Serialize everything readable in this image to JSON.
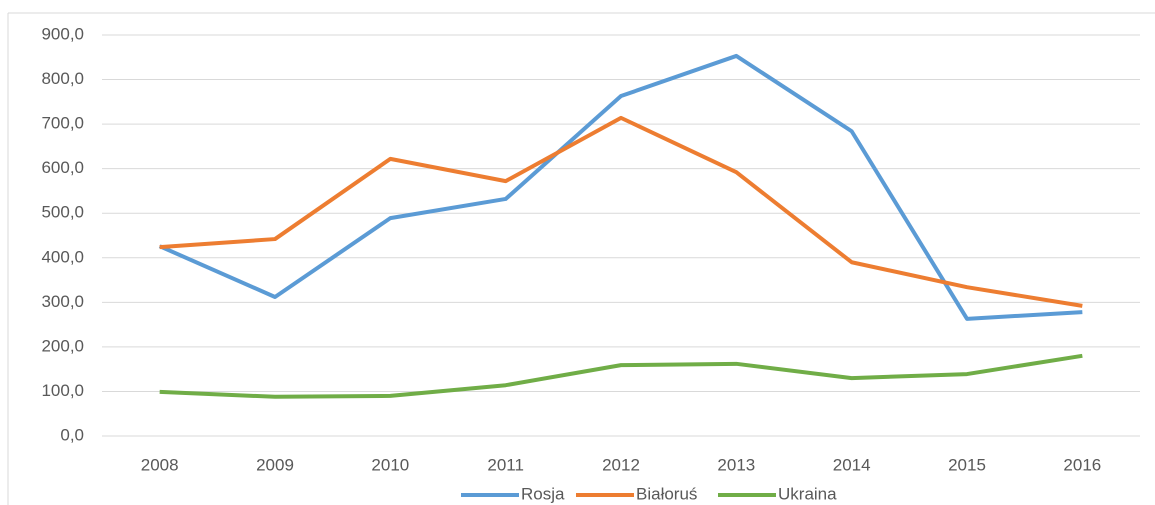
{
  "chart_data": {
    "type": "line",
    "categories": [
      "2008",
      "2009",
      "2010",
      "2011",
      "2012",
      "2013",
      "2014",
      "2015",
      "2016"
    ],
    "series": [
      {
        "name": "Rosja",
        "color": "#5b9bd5",
        "values": [
          426,
          312,
          489,
          532,
          763,
          853,
          684,
          263,
          278
        ]
      },
      {
        "name": "Białoruś",
        "color": "#ed7d31",
        "values": [
          424,
          442,
          622,
          572,
          714,
          592,
          390,
          334,
          292
        ]
      },
      {
        "name": "Ukraina",
        "color": "#70ad47",
        "values": [
          99,
          88,
          90,
          114,
          159,
          162,
          130,
          139,
          180
        ]
      }
    ],
    "ylim": [
      0,
      900
    ],
    "yticks": [
      {
        "value": 0,
        "label": "0,0"
      },
      {
        "value": 100,
        "label": "100,0"
      },
      {
        "value": 200,
        "label": "200,0"
      },
      {
        "value": 300,
        "label": "300,0"
      },
      {
        "value": 400,
        "label": "400,0"
      },
      {
        "value": 500,
        "label": "500,0"
      },
      {
        "value": 600,
        "label": "600,0"
      },
      {
        "value": 700,
        "label": "700,0"
      },
      {
        "value": 800,
        "label": "800,0"
      },
      {
        "value": 900,
        "label": "900,0"
      }
    ],
    "grid": true,
    "legend": "bottom"
  }
}
